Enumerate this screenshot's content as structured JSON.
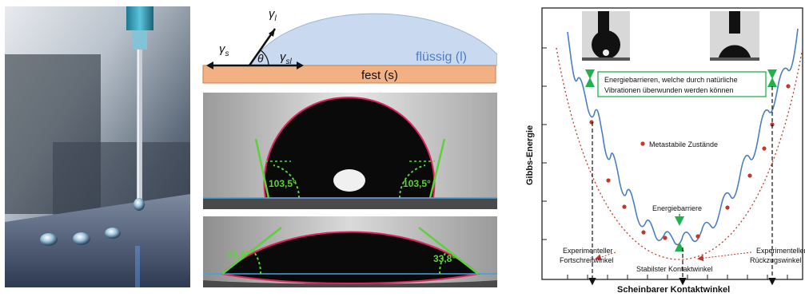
{
  "schematic": {
    "gamma_l": "γ",
    "gamma_l_sub": "l",
    "gamma_s": "γ",
    "gamma_s_sub": "s",
    "gamma_sl": "γ",
    "gamma_sl_sub": "sl",
    "theta": "θ",
    "liquid_label": "flüssig (l)",
    "solid_label": "fest (s)",
    "colors": {
      "liquid": "#c9daf0",
      "solid": "#f2b183",
      "liquid_text": "#4f7fc0"
    }
  },
  "drop_photos": {
    "advancing": {
      "angle_left": "103,5°",
      "angle_right": "103,5°"
    },
    "receding": {
      "angle_left": "33,8°",
      "angle_right": "33,8°"
    },
    "colors": {
      "contour": "#e0245e",
      "tangent": "#5cd13a",
      "baseline": "#3aa3e0"
    }
  },
  "energy_diagram": {
    "y_axis_label": "Gibbs-Energie",
    "x_axis_label": "Scheinbarer Kontaktwinkel",
    "callout_text_line1": "Energiebarrieren, welche durch natürliche",
    "callout_text_line2": "Vibrationen überwunden werden können",
    "metastable_label": "Metastabile Zustände",
    "barrier_label": "Energiebarriere",
    "advancing_label_line1": "Experimenteller",
    "advancing_label_line2": "Fortschreitwinkel",
    "receding_label_line1": "Experimenteller",
    "receding_label_line2": "Rückzugswinkel",
    "stable_label": "Stabilster Kontaktwinkel",
    "colors": {
      "curve": "#4a7fc1",
      "envelope": "#c0392b",
      "marker": "#c0392b",
      "arrow": "#22b14c",
      "callout_border": "#22b14c"
    }
  }
}
